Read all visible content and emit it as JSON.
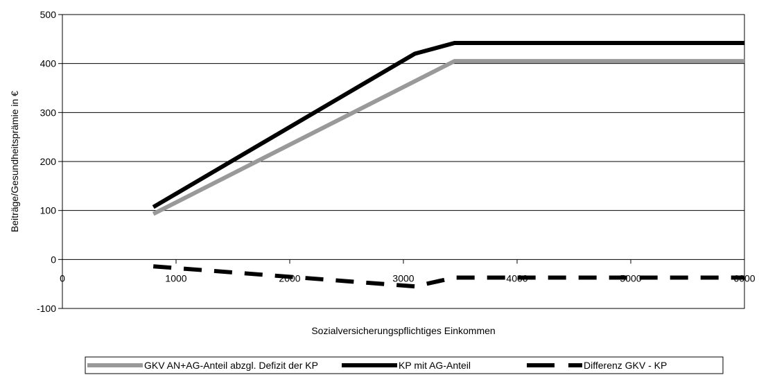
{
  "chart_data": {
    "type": "line",
    "title": "",
    "xlabel": "Sozialversicherungspflichtiges Einkommen",
    "ylabel": "Beiträge/Gesundheitsprämie in €",
    "xlim": [
      0,
      6000
    ],
    "ylim": [
      -100,
      500
    ],
    "xticks": [
      0,
      1000,
      2000,
      3000,
      4000,
      5000,
      6000
    ],
    "yticks": [
      -100,
      0,
      100,
      200,
      300,
      400,
      500
    ],
    "grid": "horizontal",
    "legend_position": "bottom",
    "series": [
      {
        "name": "GKV  AN+AG-Anteil abzgl. Defizit der KP",
        "color": "#999999",
        "style": "solid",
        "x": [
          800,
          3450,
          6000
        ],
        "y": [
          93,
          405,
          405
        ]
      },
      {
        "name": "KP mit AG-Anteil",
        "color": "#000000",
        "style": "solid",
        "x": [
          800,
          3100,
          3450,
          6000
        ],
        "y": [
          107,
          420,
          442,
          442
        ]
      },
      {
        "name": "Differenz GKV - KP",
        "color": "#000000",
        "style": "dashed",
        "x": [
          800,
          3100,
          3450,
          6000
        ],
        "y": [
          -14,
          -55,
          -37,
          -37
        ]
      }
    ]
  }
}
